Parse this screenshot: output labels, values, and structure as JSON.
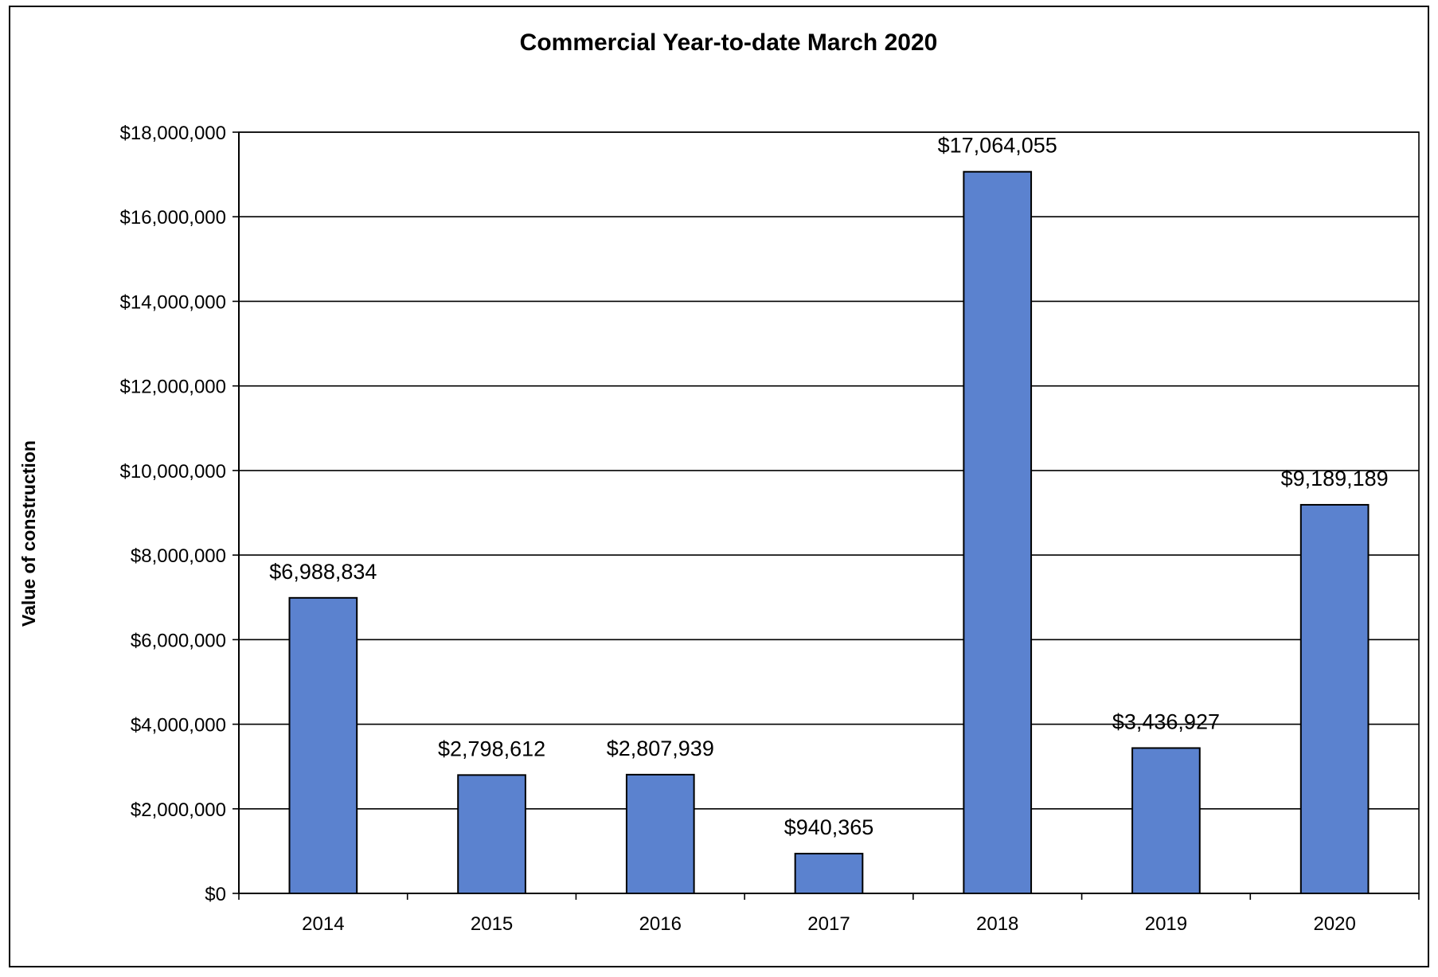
{
  "chart_data": {
    "type": "bar",
    "title": "Commercial Year-to-date March 2020",
    "xlabel": "",
    "ylabel": "Value of construction",
    "categories": [
      "2014",
      "2015",
      "2016",
      "2017",
      "2018",
      "2019",
      "2020"
    ],
    "values": [
      6988834,
      2798612,
      2807939,
      940365,
      17064055,
      3436927,
      9189189
    ],
    "data_labels": [
      "$6,988,834",
      "$2,798,612",
      "$2,807,939",
      "$940,365",
      "$17,064,055",
      "$3,436,927",
      "$9,189,189"
    ],
    "ylim": [
      0,
      18000000
    ],
    "yticks": [
      0,
      2000000,
      4000000,
      6000000,
      8000000,
      10000000,
      12000000,
      14000000,
      16000000,
      18000000
    ],
    "ytick_labels": [
      "$0",
      "$2,000,000",
      "$4,000,000",
      "$6,000,000",
      "$8,000,000",
      "$10,000,000",
      "$12,000,000",
      "$14,000,000",
      "$16,000,000",
      "$18,000,000"
    ],
    "grid": true,
    "legend": false,
    "bar_color": "#5b82cf",
    "bar_edge_color": "#000000"
  }
}
